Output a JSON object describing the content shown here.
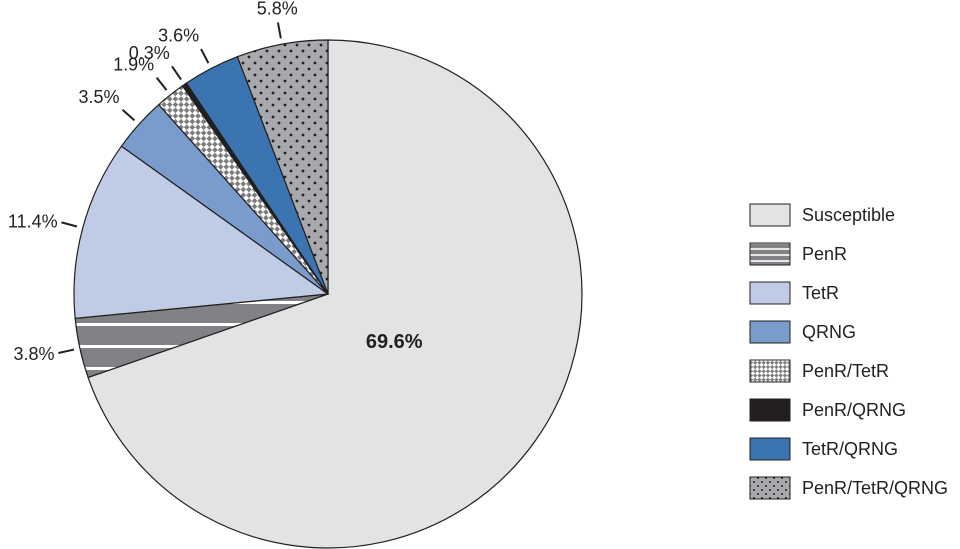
{
  "chart_data": {
    "type": "pie",
    "title": "",
    "start_angle_deg": 0,
    "direction": "clockwise",
    "legend_position": "right",
    "slices": [
      {
        "name": "Susceptible",
        "value": 69.6,
        "label": "69.6%",
        "color": "#e2e3e4",
        "pattern": "solid"
      },
      {
        "name": "PenR",
        "value": 3.8,
        "label": "3.8%",
        "color": "#808285",
        "pattern": "horizontal-lines"
      },
      {
        "name": "TetR",
        "value": 11.4,
        "label": "11.4%",
        "color": "#c0cce6",
        "pattern": "solid"
      },
      {
        "name": "QRNG",
        "value": 3.5,
        "label": "3.5%",
        "color": "#7a9ccc",
        "pattern": "solid"
      },
      {
        "name": "PenR/TetR",
        "value": 1.9,
        "label": "1.9%",
        "color": "#8c8c8c",
        "pattern": "checker"
      },
      {
        "name": "PenR/QRNG",
        "value": 0.3,
        "label": "0.3%",
        "color": "#231f20",
        "pattern": "solid"
      },
      {
        "name": "TetR/QRNG",
        "value": 3.6,
        "label": "3.6%",
        "color": "#3a75b1",
        "pattern": "solid"
      },
      {
        "name": "PenR/TetR/QRNG",
        "value": 5.8,
        "label": "5.8%",
        "color": "#a7a9ac",
        "pattern": "dots"
      }
    ]
  }
}
